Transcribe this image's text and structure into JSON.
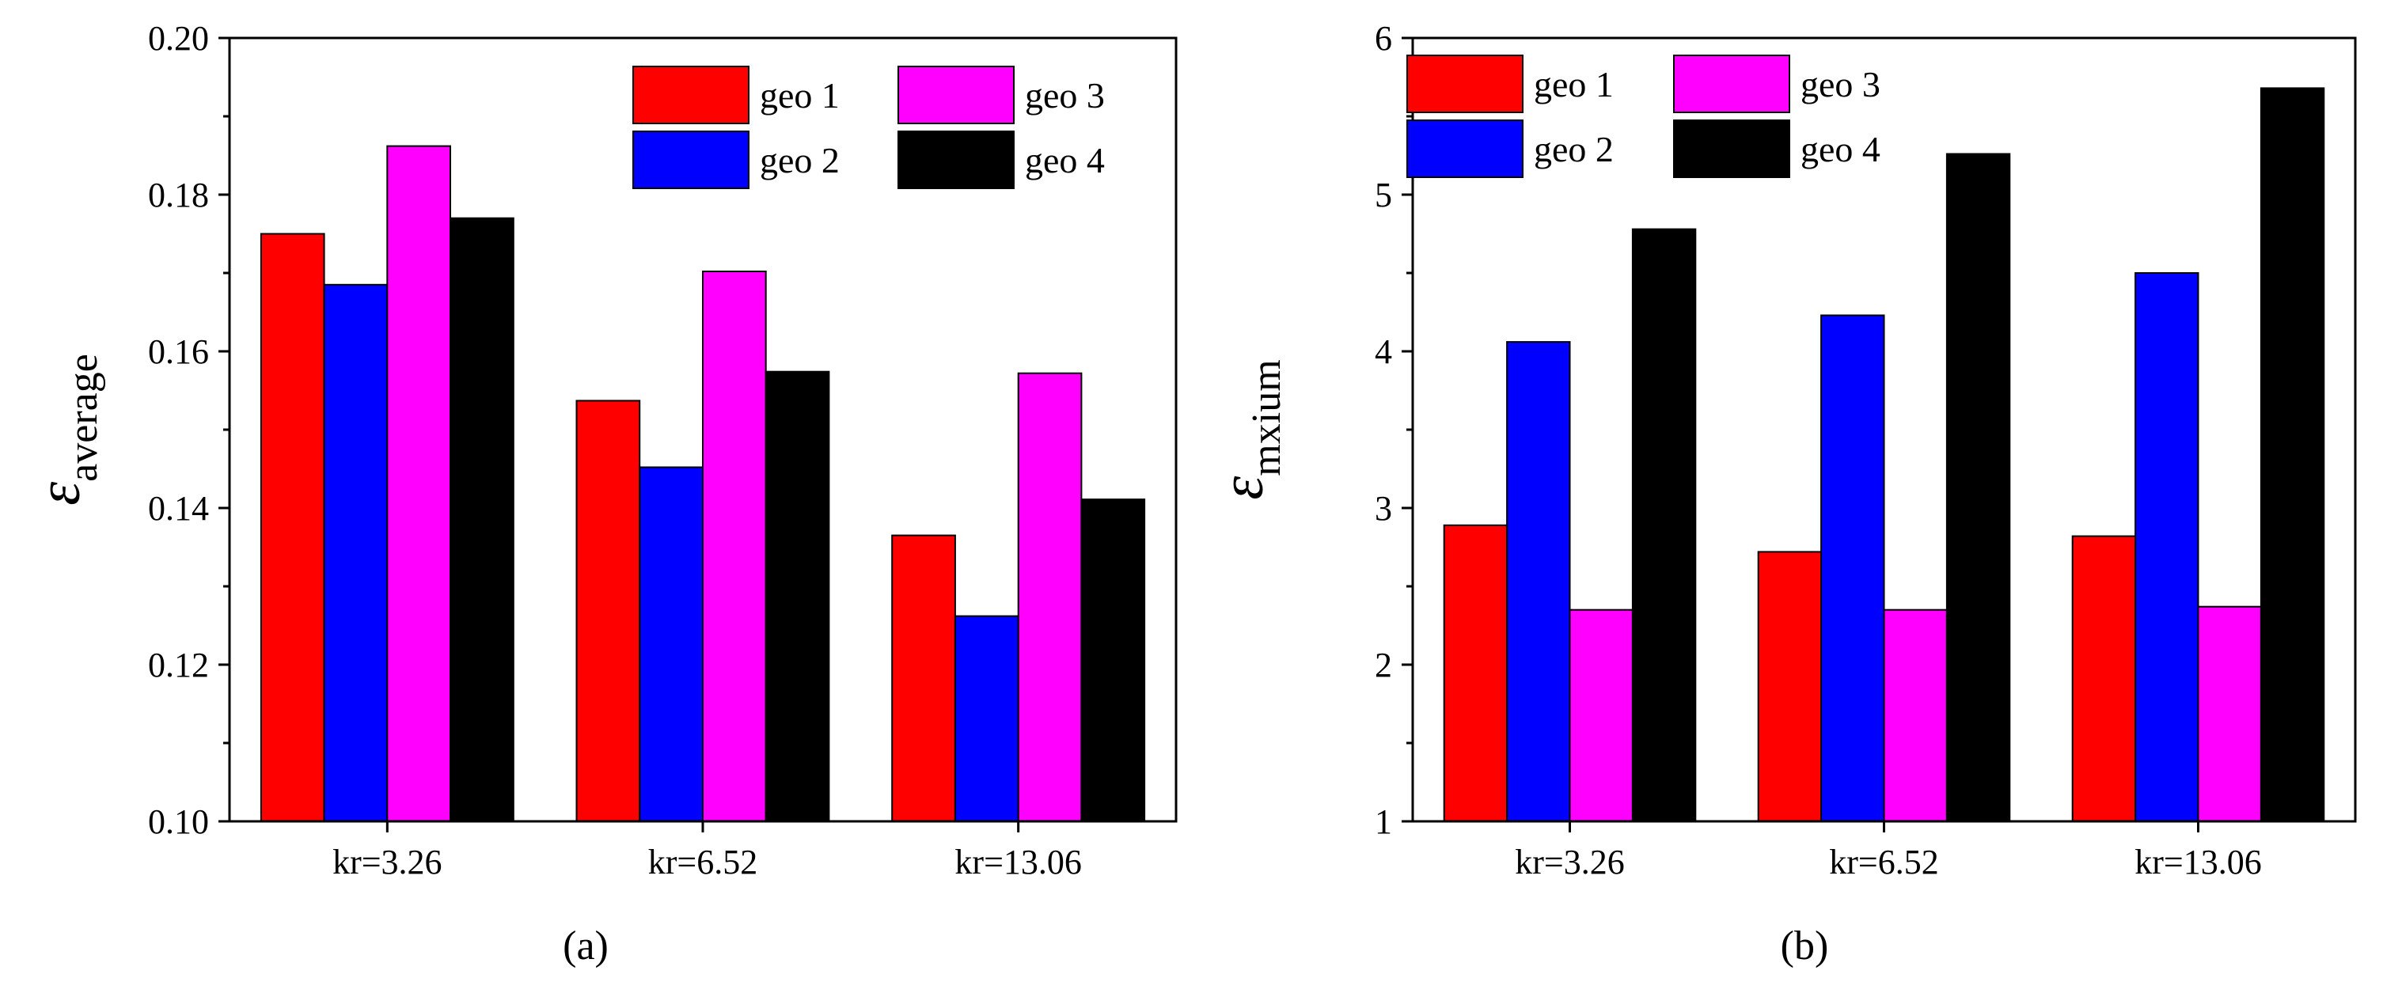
{
  "chart_data": [
    {
      "type": "bar",
      "panel_label": "(a)",
      "ylabel_symbol": "ε",
      "ylabel_subscript": "average",
      "categories": [
        "kr=3.26",
        "kr=6.52",
        "kr=13.06"
      ],
      "ylim": [
        0.1,
        0.2
      ],
      "yticks": [
        "0.10",
        "0.12",
        "0.14",
        "0.16",
        "0.18",
        "0.20"
      ],
      "legend_position": "top-right",
      "series": [
        {
          "name": "geo 1",
          "color": "#ff0000",
          "values": [
            0.175,
            0.1537,
            0.1365
          ]
        },
        {
          "name": "geo 2",
          "color": "#0000ff",
          "values": [
            0.1685,
            0.1452,
            0.1262
          ]
        },
        {
          "name": "geo 3",
          "color": "#ff00ff",
          "values": [
            0.1862,
            0.1702,
            0.1572
          ]
        },
        {
          "name": "geo 4",
          "color": "#000000",
          "values": [
            0.177,
            0.1574,
            0.1411
          ]
        }
      ]
    },
    {
      "type": "bar",
      "panel_label": "(b)",
      "ylabel_symbol": "ε",
      "ylabel_subscript": "mxium",
      "categories": [
        "kr=3.26",
        "kr=6.52",
        "kr=13.06"
      ],
      "ylim": [
        1,
        6
      ],
      "yticks": [
        "1",
        "2",
        "3",
        "4",
        "5",
        "6"
      ],
      "legend_position": "top-left",
      "series": [
        {
          "name": "geo 1",
          "color": "#ff0000",
          "values": [
            2.89,
            2.72,
            2.82
          ]
        },
        {
          "name": "geo 2",
          "color": "#0000ff",
          "values": [
            4.06,
            4.23,
            4.5
          ]
        },
        {
          "name": "geo 3",
          "color": "#ff00ff",
          "values": [
            2.35,
            2.35,
            2.37
          ]
        },
        {
          "name": "geo 4",
          "color": "#000000",
          "values": [
            4.78,
            5.26,
            5.68
          ]
        }
      ]
    }
  ]
}
